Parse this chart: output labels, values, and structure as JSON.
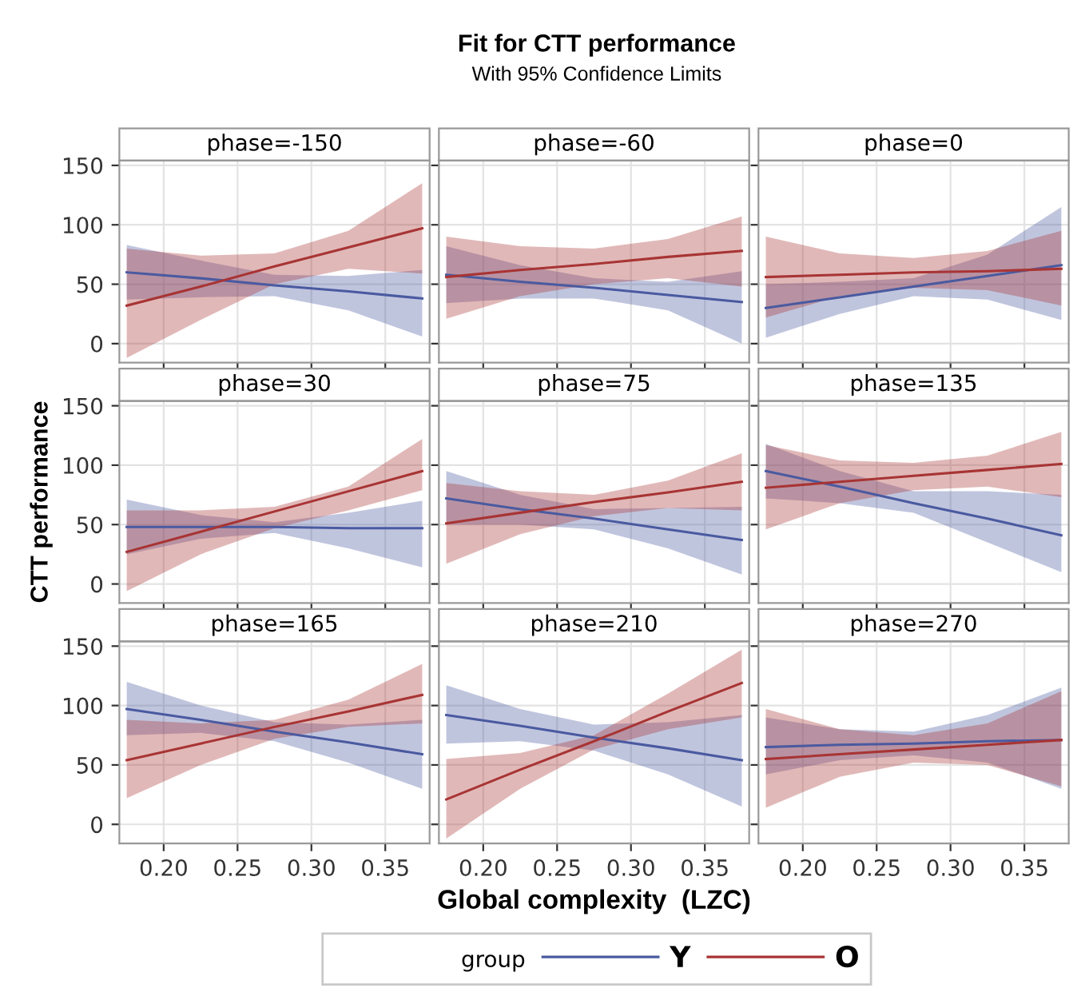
{
  "chart_data": [
    {
      "type": "line",
      "title": "phase=-150",
      "legend_title": "group",
      "legend": "bottom",
      "annotations": [
        "Fit for CTT performance",
        "With 95% Confidence Limits"
      ],
      "x": [
        0.175,
        0.225,
        0.275,
        0.325,
        0.375
      ],
      "xlim": [
        0.17,
        0.38
      ],
      "xticks": [
        0.2,
        0.25,
        0.3,
        0.35
      ],
      "ylim": [
        -16,
        154
      ],
      "yticks": [
        0,
        50,
        100,
        150
      ],
      "grid": true,
      "tick_labels": "y",
      "series": [
        {
          "name": "Y",
          "color": "#4a5aa0",
          "values": [
            60,
            55,
            49,
            44,
            38
          ],
          "lower": [
            37,
            39,
            40,
            28,
            6
          ],
          "upper": [
            83,
            70,
            58,
            57,
            62
          ]
        },
        {
          "name": "O",
          "color": "#a83434",
          "values": [
            32,
            48,
            65,
            81,
            97
          ],
          "lower": [
            -12,
            20,
            50,
            63,
            59
          ],
          "upper": [
            80,
            74,
            76,
            95,
            135
          ]
        }
      ]
    },
    {
      "type": "line",
      "title": "phase=-60",
      "x": [
        0.175,
        0.225,
        0.275,
        0.325,
        0.375
      ],
      "xlim": [
        0.17,
        0.38
      ],
      "xticks": [
        0.2,
        0.25,
        0.3,
        0.35
      ],
      "ylim": [
        -16,
        154
      ],
      "yticks": [
        0,
        50,
        100,
        150
      ],
      "grid": true,
      "tick_labels": false,
      "series": [
        {
          "color": "#4a5aa0",
          "values": [
            58,
            52,
            47,
            41,
            35
          ],
          "lower": [
            34,
            38,
            38,
            28,
            0
          ],
          "upper": [
            82,
            66,
            55,
            52,
            61
          ]
        },
        {
          "color": "#a83434",
          "values": [
            56,
            62,
            67,
            73,
            78
          ],
          "lower": [
            21,
            40,
            50,
            55,
            48
          ],
          "upper": [
            90,
            82,
            80,
            88,
            107
          ]
        }
      ]
    },
    {
      "type": "line",
      "title": "phase=0",
      "x": [
        0.175,
        0.225,
        0.275,
        0.325,
        0.375
      ],
      "xlim": [
        0.17,
        0.38
      ],
      "xticks": [
        0.2,
        0.25,
        0.3,
        0.35
      ],
      "ylim": [
        -16,
        154
      ],
      "yticks": [
        0,
        50,
        100,
        150
      ],
      "grid": true,
      "tick_labels": false,
      "series": [
        {
          "color": "#4a5aa0",
          "values": [
            30,
            39,
            48,
            57,
            66
          ],
          "lower": [
            5,
            25,
            40,
            37,
            20
          ],
          "upper": [
            50,
            52,
            55,
            75,
            115
          ]
        },
        {
          "color": "#a83434",
          "values": [
            56,
            58,
            60,
            61,
            63
          ],
          "lower": [
            22,
            40,
            47,
            45,
            32
          ],
          "upper": [
            90,
            76,
            72,
            78,
            95
          ]
        }
      ]
    },
    {
      "type": "line",
      "title": "phase=30",
      "ylabel": "CTT performance",
      "x": [
        0.175,
        0.225,
        0.275,
        0.325,
        0.375
      ],
      "xlim": [
        0.17,
        0.38
      ],
      "xticks": [
        0.2,
        0.25,
        0.3,
        0.35
      ],
      "ylim": [
        -16,
        154
      ],
      "yticks": [
        0,
        50,
        100,
        150
      ],
      "grid": true,
      "tick_labels": "y",
      "series": [
        {
          "color": "#4a5aa0",
          "values": [
            48,
            48,
            48,
            47,
            47
          ],
          "lower": [
            25,
            38,
            43,
            30,
            14
          ],
          "upper": [
            71,
            58,
            52,
            60,
            70
          ]
        },
        {
          "color": "#a83434",
          "values": [
            27,
            44,
            61,
            78,
            95
          ],
          "lower": [
            -6,
            25,
            47,
            62,
            79
          ],
          "upper": [
            62,
            62,
            65,
            82,
            122
          ]
        }
      ]
    },
    {
      "type": "line",
      "title": "phase=75",
      "x": [
        0.175,
        0.225,
        0.275,
        0.325,
        0.375
      ],
      "xlim": [
        0.17,
        0.38
      ],
      "xticks": [
        0.2,
        0.25,
        0.3,
        0.35
      ],
      "ylim": [
        -16,
        154
      ],
      "yticks": [
        0,
        50,
        100,
        150
      ],
      "grid": true,
      "tick_labels": false,
      "series": [
        {
          "color": "#4a5aa0",
          "values": [
            72,
            63,
            55,
            46,
            37
          ],
          "lower": [
            50,
            50,
            46,
            30,
            8
          ],
          "upper": [
            95,
            75,
            63,
            64,
            65
          ]
        },
        {
          "color": "#a83434",
          "values": [
            51,
            60,
            69,
            77,
            86
          ],
          "lower": [
            17,
            42,
            57,
            64,
            62
          ],
          "upper": [
            85,
            78,
            75,
            87,
            110
          ]
        }
      ]
    },
    {
      "type": "line",
      "title": "phase=135",
      "x": [
        0.175,
        0.225,
        0.275,
        0.325,
        0.375
      ],
      "xlim": [
        0.17,
        0.38
      ],
      "xticks": [
        0.2,
        0.25,
        0.3,
        0.35
      ],
      "ylim": [
        -16,
        154
      ],
      "yticks": [
        0,
        50,
        100,
        150
      ],
      "grid": true,
      "tick_labels": false,
      "series": [
        {
          "color": "#4a5aa0",
          "values": [
            95,
            82,
            68,
            55,
            41
          ],
          "lower": [
            72,
            68,
            60,
            35,
            10
          ],
          "upper": [
            118,
            95,
            78,
            78,
            75
          ]
        },
        {
          "color": "#a83434",
          "values": [
            81,
            86,
            91,
            96,
            101
          ],
          "lower": [
            46,
            68,
            79,
            82,
            73
          ],
          "upper": [
            117,
            104,
            102,
            108,
            128
          ]
        }
      ]
    },
    {
      "type": "line",
      "title": "phase=165",
      "x": [
        0.175,
        0.225,
        0.275,
        0.325,
        0.375
      ],
      "xlim": [
        0.17,
        0.38
      ],
      "xticks": [
        {
          "value": 0.2,
          "label": "0.20"
        },
        {
          "value": 0.25,
          "label": "0.25"
        },
        {
          "value": 0.3,
          "label": "0.30"
        },
        {
          "value": 0.35,
          "label": "0.35"
        }
      ],
      "ylim": [
        -16,
        154
      ],
      "yticks": [
        0,
        50,
        100,
        150
      ],
      "grid": true,
      "series": [
        {
          "color": "#4a5aa0",
          "values": [
            97,
            88,
            78,
            69,
            59
          ],
          "lower": [
            75,
            77,
            70,
            52,
            30
          ],
          "upper": [
            120,
            100,
            86,
            84,
            88
          ]
        },
        {
          "color": "#a83434",
          "values": [
            54,
            68,
            82,
            95,
            109
          ],
          "lower": [
            22,
            50,
            72,
            82,
            85
          ],
          "upper": [
            88,
            85,
            88,
            105,
            135
          ]
        }
      ]
    },
    {
      "type": "line",
      "title": "phase=210",
      "xlabel": "Global complexity  (LZC)",
      "x": [
        0.175,
        0.225,
        0.275,
        0.325,
        0.375
      ],
      "xlim": [
        0.17,
        0.38
      ],
      "xticks": [
        {
          "value": 0.2,
          "label": "0.20"
        },
        {
          "value": 0.25,
          "label": "0.25"
        },
        {
          "value": 0.3,
          "label": "0.30"
        },
        {
          "value": 0.35,
          "label": "0.35"
        }
      ],
      "ylim": [
        -16,
        154
      ],
      "yticks": [
        0,
        50,
        100,
        150
      ],
      "grid": true,
      "tick_labels": "x",
      "series": [
        {
          "color": "#4a5aa0",
          "values": [
            92,
            83,
            73,
            64,
            54
          ],
          "lower": [
            68,
            70,
            62,
            42,
            15
          ],
          "upper": [
            117,
            97,
            84,
            86,
            92
          ]
        },
        {
          "color": "#a83434",
          "values": [
            21,
            46,
            70,
            95,
            119
          ],
          "lower": [
            -12,
            30,
            63,
            80,
            90
          ],
          "upper": [
            55,
            60,
            75,
            110,
            147
          ]
        }
      ]
    },
    {
      "type": "line",
      "title": "phase=270",
      "x": [
        0.175,
        0.225,
        0.275,
        0.325,
        0.375
      ],
      "xlim": [
        0.17,
        0.38
      ],
      "xticks": [
        {
          "value": 0.2,
          "label": "0.20"
        },
        {
          "value": 0.25,
          "label": "0.25"
        },
        {
          "value": 0.3,
          "label": "0.30"
        },
        {
          "value": 0.35,
          "label": "0.35"
        }
      ],
      "ylim": [
        -16,
        154
      ],
      "yticks": [
        0,
        50,
        100,
        150
      ],
      "grid": true,
      "tick_labels": "x",
      "series": [
        {
          "color": "#4a5aa0",
          "values": [
            65,
            67,
            68,
            70,
            71
          ],
          "lower": [
            42,
            54,
            58,
            52,
            30
          ],
          "upper": [
            90,
            80,
            78,
            92,
            115
          ]
        },
        {
          "color": "#a83434",
          "values": [
            55,
            59,
            63,
            67,
            71
          ],
          "lower": [
            14,
            40,
            52,
            50,
            32
          ],
          "upper": [
            97,
            80,
            75,
            85,
            112
          ]
        }
      ]
    }
  ]
}
